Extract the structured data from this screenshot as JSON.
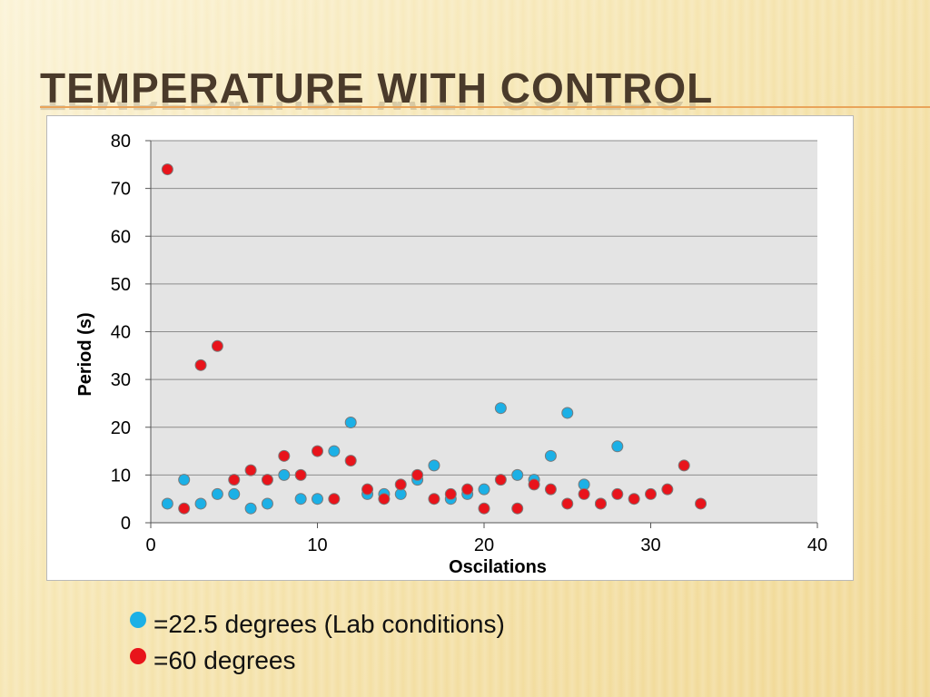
{
  "slide": {
    "title": "Temperature with Control"
  },
  "legend": {
    "items": [
      {
        "label": "=22.5 degrees (Lab conditions)",
        "color": "#1cb0e6"
      },
      {
        "label": "=60 degrees",
        "color": "#e8141b"
      }
    ]
  },
  "chart_data": {
    "type": "scatter",
    "xlabel": "Oscilations",
    "ylabel": "Period (s)",
    "xlim": [
      0,
      40
    ],
    "ylim": [
      0,
      80
    ],
    "xticks": [
      0,
      10,
      20,
      30,
      40
    ],
    "yticks": [
      0,
      10,
      20,
      30,
      40,
      50,
      60,
      70,
      80
    ],
    "grid": true,
    "series": [
      {
        "color": "#1cb0e6",
        "points": [
          [
            1,
            4
          ],
          [
            2,
            9
          ],
          [
            3,
            4
          ],
          [
            4,
            6
          ],
          [
            5,
            6
          ],
          [
            6,
            3
          ],
          [
            7,
            4
          ],
          [
            8,
            10
          ],
          [
            9,
            5
          ],
          [
            10,
            5
          ],
          [
            11,
            15
          ],
          [
            12,
            21
          ],
          [
            13,
            6
          ],
          [
            14,
            6
          ],
          [
            15,
            6
          ],
          [
            16,
            9
          ],
          [
            17,
            12
          ],
          [
            18,
            5
          ],
          [
            19,
            6
          ],
          [
            20,
            7
          ],
          [
            21,
            24
          ],
          [
            22,
            10
          ],
          [
            23,
            9
          ],
          [
            24,
            14
          ],
          [
            25,
            23
          ],
          [
            26,
            8
          ],
          [
            27,
            4
          ],
          [
            28,
            16
          ]
        ]
      },
      {
        "color": "#e8141b",
        "points": [
          [
            1,
            74
          ],
          [
            2,
            3
          ],
          [
            3,
            33
          ],
          [
            4,
            37
          ],
          [
            5,
            9
          ],
          [
            6,
            11
          ],
          [
            7,
            9
          ],
          [
            8,
            14
          ],
          [
            9,
            10
          ],
          [
            10,
            15
          ],
          [
            11,
            5
          ],
          [
            12,
            13
          ],
          [
            13,
            7
          ],
          [
            14,
            5
          ],
          [
            15,
            8
          ],
          [
            16,
            10
          ],
          [
            17,
            5
          ],
          [
            18,
            6
          ],
          [
            19,
            7
          ],
          [
            20,
            3
          ],
          [
            21,
            9
          ],
          [
            22,
            3
          ],
          [
            23,
            8
          ],
          [
            24,
            7
          ],
          [
            25,
            4
          ],
          [
            26,
            6
          ],
          [
            27,
            4
          ],
          [
            28,
            6
          ],
          [
            29,
            5
          ],
          [
            30,
            6
          ],
          [
            31,
            7
          ],
          [
            32,
            12
          ],
          [
            33,
            4
          ]
        ]
      }
    ]
  }
}
